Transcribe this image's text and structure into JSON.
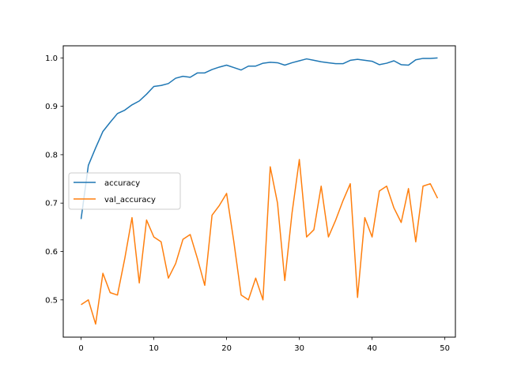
{
  "chart_data": {
    "type": "line",
    "title": "",
    "xlabel": "",
    "ylabel": "",
    "xlim": [
      -2.45,
      51.45
    ],
    "ylim": [
      0.423,
      1.025
    ],
    "xticks": [
      0,
      10,
      20,
      30,
      40,
      50
    ],
    "yticks": [
      0.5,
      0.6,
      0.7,
      0.8,
      0.9,
      1.0
    ],
    "xtick_labels": [
      "0",
      "10",
      "20",
      "30",
      "40",
      "50"
    ],
    "ytick_labels": [
      "0.5",
      "0.6",
      "0.7",
      "0.8",
      "0.9",
      "1.0"
    ],
    "grid": false,
    "legend_position": "center-left",
    "x": [
      0,
      1,
      2,
      3,
      4,
      5,
      6,
      7,
      8,
      9,
      10,
      11,
      12,
      13,
      14,
      15,
      16,
      17,
      18,
      19,
      20,
      21,
      22,
      23,
      24,
      25,
      26,
      27,
      28,
      29,
      30,
      31,
      32,
      33,
      34,
      35,
      36,
      37,
      38,
      39,
      40,
      41,
      42,
      43,
      44,
      45,
      46,
      47,
      48,
      49
    ],
    "series": [
      {
        "name": "accuracy",
        "color": "#1f77b4",
        "values": [
          0.667,
          0.778,
          0.814,
          0.848,
          0.867,
          0.885,
          0.892,
          0.903,
          0.911,
          0.925,
          0.941,
          0.943,
          0.947,
          0.958,
          0.962,
          0.96,
          0.969,
          0.969,
          0.976,
          0.981,
          0.985,
          0.98,
          0.975,
          0.983,
          0.983,
          0.989,
          0.991,
          0.99,
          0.985,
          0.99,
          0.994,
          0.998,
          0.995,
          0.992,
          0.99,
          0.988,
          0.988,
          0.995,
          0.997,
          0.995,
          0.993,
          0.986,
          0.989,
          0.994,
          0.986,
          0.985,
          0.996,
          0.999,
          0.999,
          1.0
        ]
      },
      {
        "name": "val_accuracy",
        "color": "#ff7f0e",
        "values": [
          0.49,
          0.5,
          0.45,
          0.555,
          0.515,
          0.51,
          0.585,
          0.67,
          0.535,
          0.665,
          0.63,
          0.62,
          0.545,
          0.575,
          0.625,
          0.635,
          0.585,
          0.53,
          0.675,
          0.695,
          0.72,
          0.62,
          0.51,
          0.5,
          0.545,
          0.5,
          0.775,
          0.7,
          0.54,
          0.68,
          0.79,
          0.63,
          0.645,
          0.735,
          0.63,
          0.665,
          0.705,
          0.74,
          0.505,
          0.67,
          0.63,
          0.725,
          0.735,
          0.69,
          0.66,
          0.73,
          0.62,
          0.735,
          0.74,
          0.71
        ]
      }
    ]
  }
}
